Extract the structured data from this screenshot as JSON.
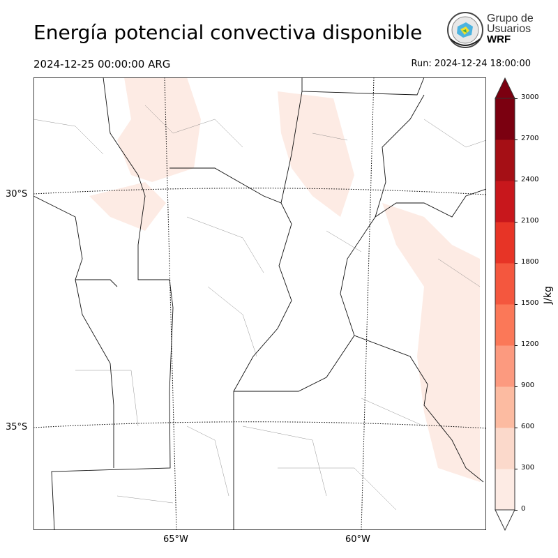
{
  "header": {
    "title": "Energía potencial convectiva disponible",
    "valid_time": "2024-12-25 00:00:00 ARG",
    "run_time": "Run: 2024-12-24 18:00:00"
  },
  "logo": {
    "line1": "Grupo de",
    "line2": "Usuarios",
    "line3": "WRF"
  },
  "map": {
    "lat_labels": [
      "30°S",
      "35°S"
    ],
    "lon_labels": [
      "65°W",
      "60°W"
    ]
  },
  "colorbar": {
    "unit": "J/kg",
    "ticks": [
      "3000",
      "2700",
      "2400",
      "2100",
      "1800",
      "1500",
      "1200",
      "900",
      "600",
      "300",
      "0"
    ],
    "colors": [
      "#fdebe4",
      "#fbd9cb",
      "#fcbba1",
      "#fc9a7f",
      "#fb7858",
      "#f4573e",
      "#e73426",
      "#c8171c",
      "#a50f15",
      "#7b0010"
    ],
    "under_color": "#ffffff",
    "over_color": "#7b0010"
  }
}
